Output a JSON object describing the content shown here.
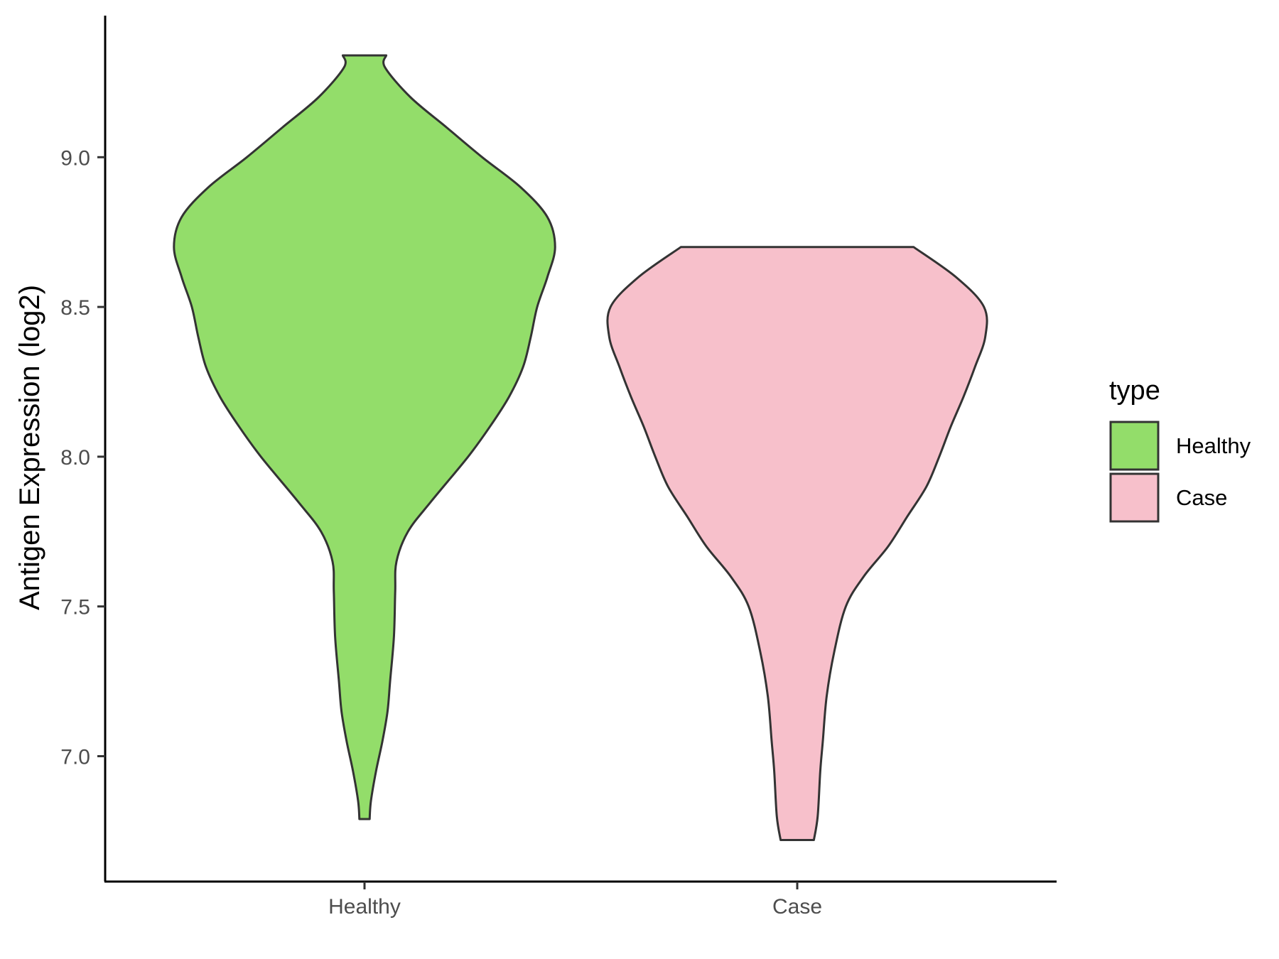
{
  "chart_data": {
    "type": "violin",
    "title": "",
    "xlabel": "",
    "ylabel": "Antigen Expression (log2)",
    "categories": [
      "Healthy",
      "Case"
    ],
    "ylim": [
      6.6,
      9.5
    ],
    "y_ticks": [
      7.0,
      7.5,
      8.0,
      8.5,
      9.0
    ],
    "y_tick_labels": [
      "7.0",
      "7.5",
      "8.0",
      "8.5",
      "9.0"
    ],
    "grid": false,
    "legend": {
      "title": "type",
      "position": "right",
      "entries": [
        "Healthy",
        "Case"
      ]
    },
    "series": [
      {
        "category": "Healthy",
        "color": "#93dd6a",
        "min": 6.79,
        "max": 9.34,
        "density_profile": [
          [
            6.79,
            0.04
          ],
          [
            6.85,
            0.05
          ],
          [
            6.95,
            0.09
          ],
          [
            7.05,
            0.14
          ],
          [
            7.15,
            0.18
          ],
          [
            7.25,
            0.2
          ],
          [
            7.4,
            0.23
          ],
          [
            7.55,
            0.24
          ],
          [
            7.65,
            0.25
          ],
          [
            7.75,
            0.34
          ],
          [
            7.85,
            0.52
          ],
          [
            8.0,
            0.81
          ],
          [
            8.1,
            0.98
          ],
          [
            8.2,
            1.13
          ],
          [
            8.3,
            1.24
          ],
          [
            8.4,
            1.3
          ],
          [
            8.5,
            1.35
          ],
          [
            8.6,
            1.43
          ],
          [
            8.7,
            1.49
          ],
          [
            8.8,
            1.43
          ],
          [
            8.9,
            1.22
          ],
          [
            9.0,
            0.92
          ],
          [
            9.1,
            0.64
          ],
          [
            9.2,
            0.36
          ],
          [
            9.3,
            0.16
          ],
          [
            9.34,
            0.17
          ]
        ]
      },
      {
        "category": "Case",
        "color": "#f7c0cb",
        "min": 6.72,
        "max": 8.7,
        "density_profile": [
          [
            6.72,
            0.13
          ],
          [
            6.8,
            0.16
          ],
          [
            6.95,
            0.18
          ],
          [
            7.05,
            0.2
          ],
          [
            7.2,
            0.23
          ],
          [
            7.35,
            0.29
          ],
          [
            7.5,
            0.38
          ],
          [
            7.6,
            0.52
          ],
          [
            7.7,
            0.71
          ],
          [
            7.8,
            0.86
          ],
          [
            7.9,
            1.01
          ],
          [
            8.0,
            1.11
          ],
          [
            8.1,
            1.2
          ],
          [
            8.2,
            1.3
          ],
          [
            8.3,
            1.39
          ],
          [
            8.4,
            1.47
          ],
          [
            8.5,
            1.46
          ],
          [
            8.6,
            1.24
          ],
          [
            8.7,
            0.91
          ]
        ]
      }
    ]
  }
}
